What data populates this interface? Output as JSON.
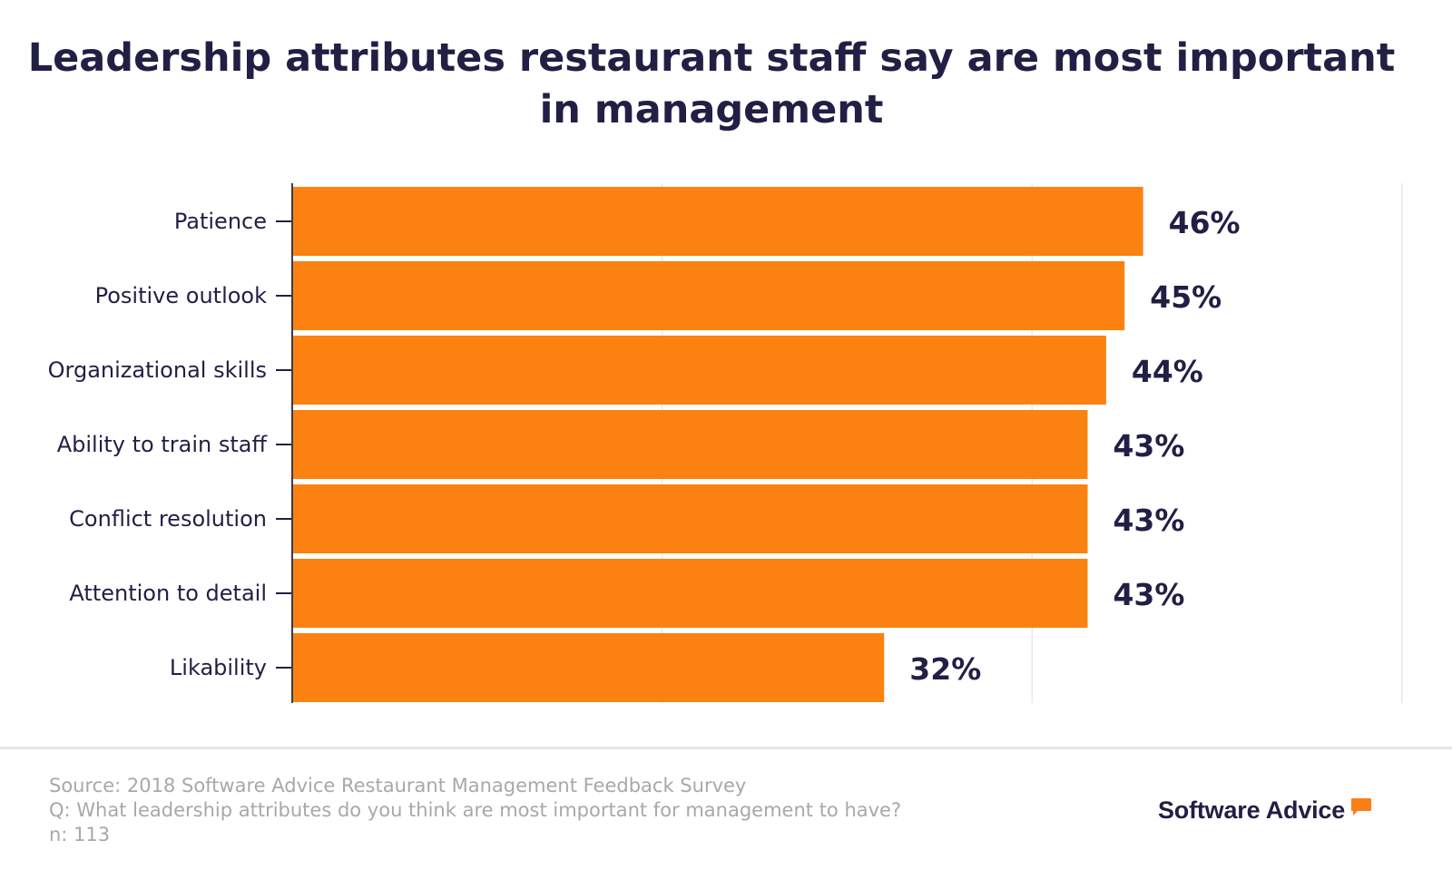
{
  "chart_data": {
    "type": "bar",
    "orientation": "horizontal",
    "title": "Leadership attributes restaurant staff say are most important in management",
    "title_lines": [
      "Leadership attributes restaurant staff say are most important",
      "in management"
    ],
    "categories": [
      "Patience",
      "Positive outlook",
      "Organizational skills",
      "Ability to train staff",
      "Conflict resolution",
      "Attention to detail",
      "Likability"
    ],
    "values": [
      46,
      45,
      44,
      43,
      43,
      43,
      32
    ],
    "data_labels": [
      "46%",
      "45%",
      "44%",
      "43%",
      "43%",
      "43%",
      "32%"
    ],
    "xlim": [
      0,
      60
    ],
    "gridlines": [
      20,
      40,
      60
    ],
    "grid": true,
    "unit": "%",
    "bar_color": "#fb8210",
    "text_color": "#221f45"
  },
  "footer": {
    "source": "Source: 2018 Software Advice Restaurant Management Feedback Survey",
    "question": "Q: What leadership attributes do you think are most important for management to have?",
    "n": "n: 113"
  },
  "logo": {
    "text": "Software Advice",
    "accent": "#fb7f19"
  }
}
